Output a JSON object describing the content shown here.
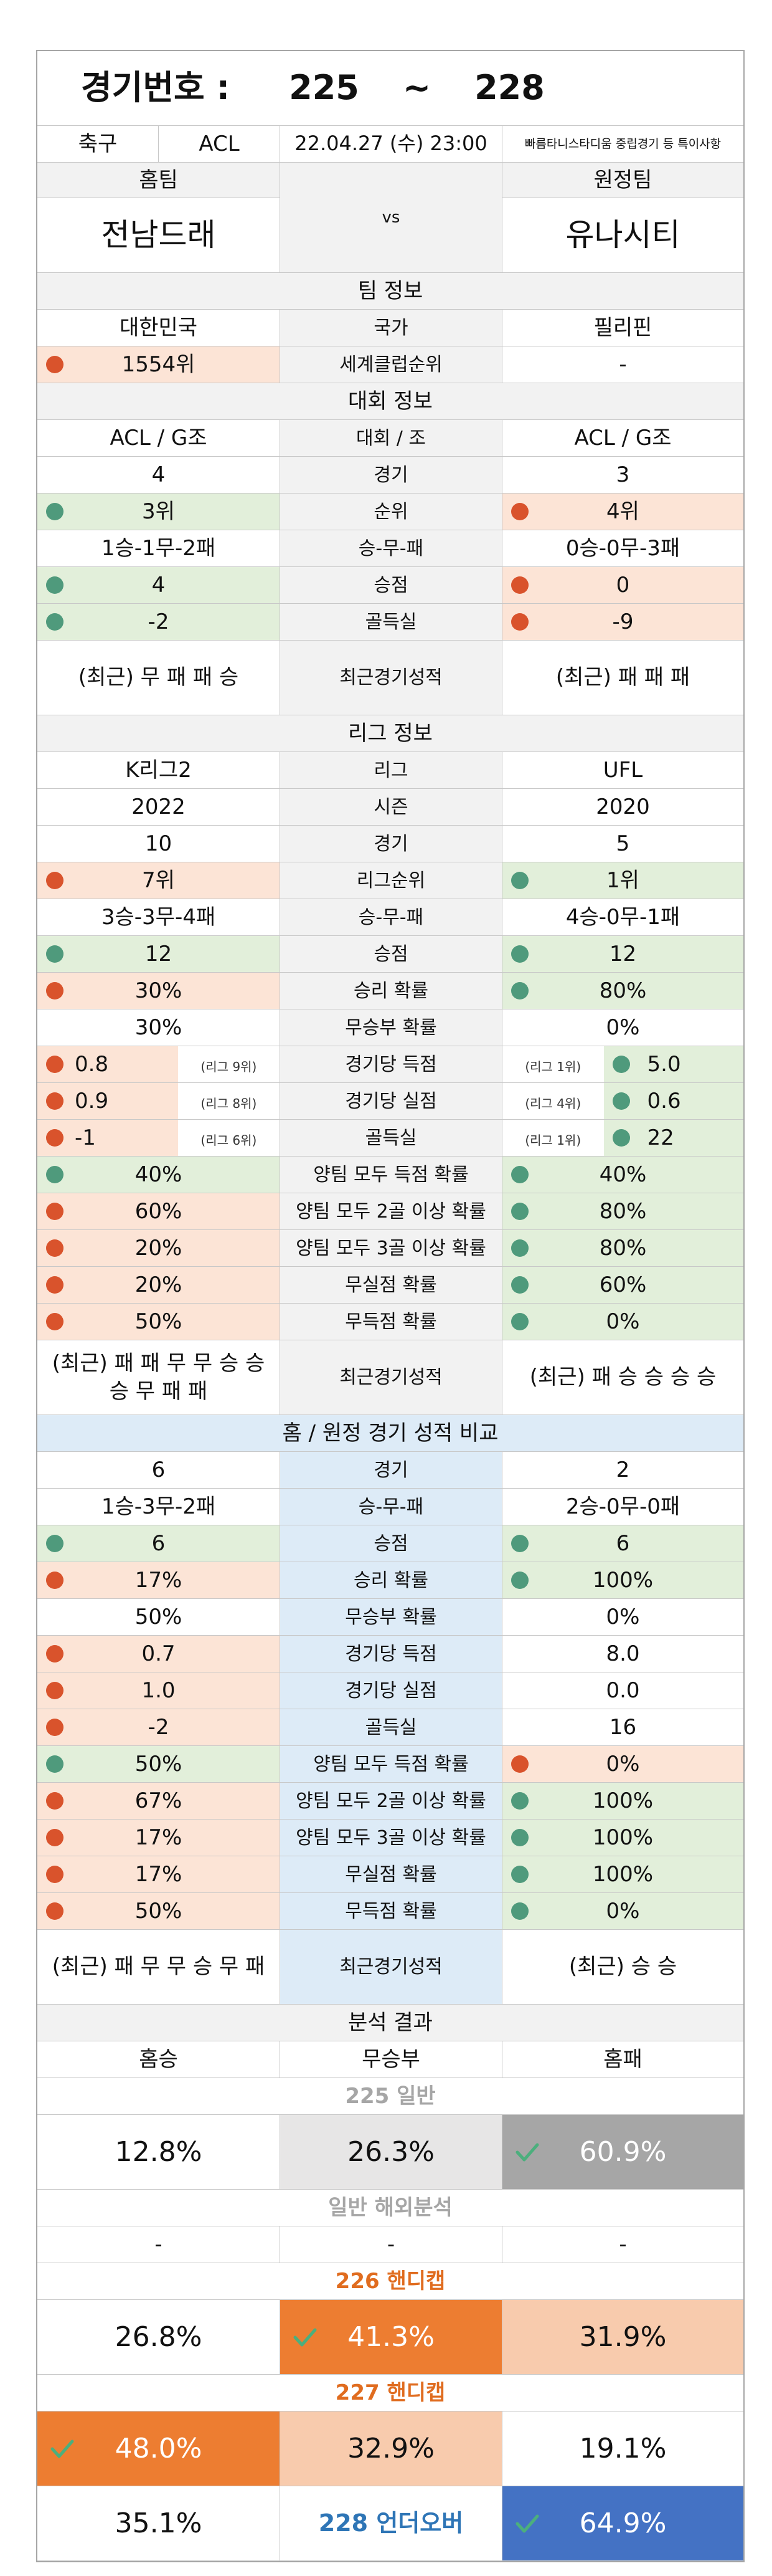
{
  "header": {
    "label": "경기번호 :",
    "from": "225",
    "sep": "~",
    "to": "228"
  },
  "match": {
    "sport": "축구",
    "league": "ACL",
    "datetime": "22.04.27 (수) 23:00",
    "note": "빠름타니스타디움 중립경기 등 특이사항"
  },
  "teams": {
    "home_label": "홈팀",
    "away_label": "원정팀",
    "vs": "vs",
    "home": "전남드래",
    "away": "유나시티"
  },
  "sections": [
    {
      "title": "팀 정보",
      "rows": [
        {
          "home": "대한민국",
          "label": "국가",
          "away": "필리핀"
        },
        {
          "home": "1554위",
          "home_dot": "red",
          "label": "세계클럽순위",
          "away": "-"
        }
      ]
    },
    {
      "title": "대회 정보",
      "rows": [
        {
          "home": "ACL / G조",
          "label": "대회 / 조",
          "away": "ACL / G조"
        },
        {
          "home": "4",
          "label": "경기",
          "away": "3"
        },
        {
          "home": "3위",
          "home_dot": "green",
          "label": "순위",
          "away": "4위",
          "away_dot": "red"
        },
        {
          "home": "1승-1무-2패",
          "label": "승-무-패",
          "away": "0승-0무-3패"
        },
        {
          "home": "4",
          "home_dot": "green",
          "label": "승점",
          "away": "0",
          "away_dot": "red"
        },
        {
          "home": "-2",
          "home_dot": "green",
          "label": "골득실",
          "away": "-9",
          "away_dot": "red"
        },
        {
          "type": "form",
          "home": "(최근) 무 패 패 승",
          "label": "최근경기성적",
          "away": "(최근) 패 패 패"
        }
      ]
    },
    {
      "title": "리그 정보",
      "rows": [
        {
          "home": "K리그2",
          "label": "리그",
          "away": "UFL"
        },
        {
          "home": "2022",
          "label": "시즌",
          "away": "2020"
        },
        {
          "home": "10",
          "label": "경기",
          "away": "5"
        },
        {
          "home": "7위",
          "home_dot": "red",
          "label": "리그순위",
          "away": "1위",
          "away_dot": "green"
        },
        {
          "home": "3승-3무-4패",
          "label": "승-무-패",
          "away": "4승-0무-1패"
        },
        {
          "home": "12",
          "home_dot": "green",
          "label": "승점",
          "away": "12",
          "away_dot": "green"
        },
        {
          "home": "30%",
          "home_dot": "red",
          "label": "승리 확률",
          "away": "80%",
          "away_dot": "green"
        },
        {
          "home": "30%",
          "label": "무승부 확률",
          "away": "0%"
        },
        {
          "home": "0.8",
          "home_dot": "red",
          "home_note": "(리그 9위)",
          "label": "경기당 득점",
          "away": "5.0",
          "away_dot": "green",
          "away_note": "(리그 1위)"
        },
        {
          "home": "0.9",
          "home_dot": "red",
          "home_note": "(리그 8위)",
          "label": "경기당 실점",
          "away": "0.6",
          "away_dot": "green",
          "away_note": "(리그 4위)"
        },
        {
          "home": "-1",
          "home_dot": "red",
          "home_note": "(리그 6위)",
          "label": "골득실",
          "away": "22",
          "away_dot": "green",
          "away_note": "(리그 1위)"
        },
        {
          "home": "40%",
          "home_dot": "green",
          "label": "양팀 모두 득점 확률",
          "away": "40%",
          "away_dot": "green"
        },
        {
          "home": "60%",
          "home_dot": "red",
          "label": "양팀 모두 2골 이상 확률",
          "away": "80%",
          "away_dot": "green"
        },
        {
          "home": "20%",
          "home_dot": "red",
          "label": "양팀 모두 3골 이상 확률",
          "away": "80%",
          "away_dot": "green"
        },
        {
          "home": "20%",
          "home_dot": "red",
          "label": "무실점 확률",
          "away": "60%",
          "away_dot": "green"
        },
        {
          "home": "50%",
          "home_dot": "red",
          "label": "무득점 확률",
          "away": "0%",
          "away_dot": "green"
        },
        {
          "type": "form",
          "home": "(최근) 패 패 무 무 승 승 승 무 패 패",
          "label": "최근경기성적",
          "away": "(최근) 패 승 승 승 승"
        }
      ]
    },
    {
      "title": "홈 / 원정 경기 성적 비교",
      "theme": "blue",
      "rows": [
        {
          "home": "6",
          "label": "경기",
          "away": "2"
        },
        {
          "home": "1승-3무-2패",
          "label": "승-무-패",
          "away": "2승-0무-0패"
        },
        {
          "home": "6",
          "home_dot": "green",
          "label": "승점",
          "away": "6",
          "away_dot": "green"
        },
        {
          "home": "17%",
          "home_dot": "red",
          "label": "승리 확률",
          "away": "100%",
          "away_dot": "green"
        },
        {
          "home": "50%",
          "label": "무승부 확률",
          "away": "0%"
        },
        {
          "home": "0.7",
          "home_dot": "red",
          "label": "경기당 득점",
          "away": "8.0"
        },
        {
          "home": "1.0",
          "home_dot": "red",
          "label": "경기당 실점",
          "away": "0.0"
        },
        {
          "home": "-2",
          "home_dot": "red",
          "label": "골득실",
          "away": "16"
        },
        {
          "home": "50%",
          "home_dot": "green",
          "label": "양팀 모두 득점 확률",
          "away": "0%",
          "away_dot": "red"
        },
        {
          "home": "67%",
          "home_dot": "red",
          "label": "양팀 모두 2골 이상 확률",
          "away": "100%",
          "away_dot": "green"
        },
        {
          "home": "17%",
          "home_dot": "red",
          "label": "양팀 모두 3골 이상 확률",
          "away": "100%",
          "away_dot": "green"
        },
        {
          "home": "17%",
          "home_dot": "red",
          "label": "무실점 확률",
          "away": "100%",
          "away_dot": "green"
        },
        {
          "home": "50%",
          "home_dot": "red",
          "label": "무득점 확률",
          "away": "0%",
          "away_dot": "green"
        },
        {
          "type": "form",
          "home": "(최근) 패 무 무 승 무 패",
          "label": "최근경기성적",
          "away": "(최근) 승 승"
        }
      ]
    }
  ],
  "results": {
    "title": "분석 결과",
    "columns": [
      "홈승",
      "무승부",
      "홈패"
    ],
    "groups": [
      {
        "title": "225 일반",
        "title_color": "#a6a6a6",
        "cells": [
          {
            "text": "12.8%"
          },
          {
            "text": "26.3%",
            "fill": "#e7e6e6"
          },
          {
            "text": "60.9%",
            "fill": "#a6a6a6",
            "text_color": "#ffffff",
            "check": true
          }
        ]
      },
      {
        "title": "일반 해외분석",
        "title_color": "#a6a6a6",
        "compact": true,
        "cells": [
          {
            "text": "-"
          },
          {
            "text": "-"
          },
          {
            "text": "-"
          }
        ]
      },
      {
        "title": "226 핸디캡",
        "title_color": "#e06c1f",
        "cells": [
          {
            "text": "26.8%"
          },
          {
            "text": "41.3%",
            "fill": "#ed7d31",
            "text_color": "#ffffff",
            "check": true
          },
          {
            "text": "31.9%",
            "fill": "#f8cbad"
          }
        ]
      },
      {
        "title": "227 핸디캡",
        "title_color": "#e06c1f",
        "cells": [
          {
            "text": "48.0%",
            "fill": "#ed7d31",
            "text_color": "#ffffff",
            "check": true
          },
          {
            "text": "32.9%",
            "fill": "#f8cbad"
          },
          {
            "text": "19.1%"
          }
        ]
      },
      {
        "cells": [
          {
            "text": "35.1%"
          },
          {
            "text": "228 언더오버",
            "text_color": "#2e75b6"
          },
          {
            "text": "64.9%",
            "fill": "#4472c4",
            "text_color": "#ffffff",
            "check": true
          }
        ]
      }
    ]
  }
}
